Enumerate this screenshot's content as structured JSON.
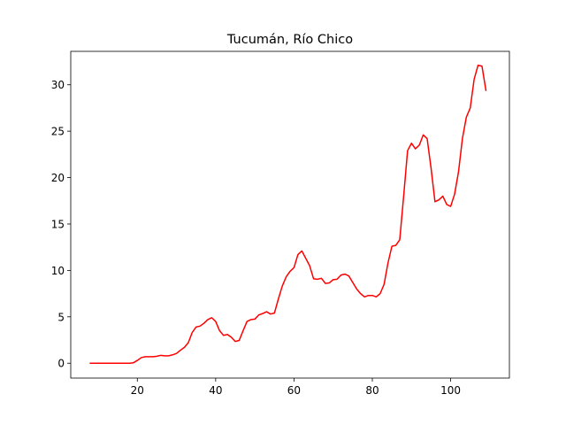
{
  "chart_data": {
    "type": "line",
    "title": "Tucumán, Río Chico",
    "xlabel": "",
    "ylabel": "",
    "xlim": [
      3,
      115
    ],
    "ylim": [
      -1.6,
      33.6
    ],
    "xticks": [
      20,
      40,
      60,
      80,
      100
    ],
    "yticks": [
      0,
      5,
      10,
      15,
      20,
      25,
      30
    ],
    "grid": false,
    "series": [
      {
        "color": "#ff0000",
        "x": [
          8,
          9,
          10,
          11,
          12,
          13,
          14,
          15,
          16,
          17,
          18,
          19,
          20,
          21,
          22,
          23,
          24,
          25,
          26,
          27,
          28,
          29,
          30,
          31,
          32,
          33,
          34,
          35,
          36,
          37,
          38,
          39,
          40,
          41,
          42,
          43,
          44,
          45,
          46,
          47,
          48,
          49,
          50,
          51,
          52,
          53,
          54,
          55,
          56,
          57,
          58,
          59,
          60,
          61,
          62,
          63,
          64,
          65,
          66,
          67,
          68,
          69,
          70,
          71,
          72,
          73,
          74,
          75,
          76,
          77,
          78,
          79,
          80,
          81,
          82,
          83,
          84,
          85,
          86,
          87,
          88,
          89,
          90,
          91,
          92,
          93,
          94,
          95,
          96,
          97,
          98,
          99,
          100,
          101,
          102,
          103,
          104,
          105,
          106,
          107,
          108,
          109
        ],
        "y": [
          0,
          0,
          0,
          0,
          0,
          0,
          0,
          0,
          0,
          0,
          0,
          0.05,
          0.3,
          0.6,
          0.7,
          0.7,
          0.7,
          0.75,
          0.85,
          0.8,
          0.8,
          0.9,
          1.05,
          1.4,
          1.7,
          2.2,
          3.3,
          3.9,
          4.0,
          4.3,
          4.7,
          4.9,
          4.5,
          3.5,
          3.0,
          3.1,
          2.8,
          2.35,
          2.45,
          3.5,
          4.5,
          4.7,
          4.75,
          5.2,
          5.35,
          5.55,
          5.3,
          5.4,
          6.9,
          8.3,
          9.3,
          9.9,
          10.3,
          11.7,
          12.1,
          11.3,
          10.5,
          9.1,
          9.05,
          9.15,
          8.6,
          8.65,
          9.0,
          9.05,
          9.5,
          9.6,
          9.4,
          8.7,
          8.0,
          7.5,
          7.15,
          7.3,
          7.3,
          7.15,
          7.5,
          8.5,
          10.8,
          12.6,
          12.7,
          13.3,
          18.0,
          22.9,
          23.7,
          23.1,
          23.5,
          24.6,
          24.2,
          21.0,
          17.4,
          17.6,
          18.0,
          17.1,
          16.9,
          18.2,
          20.6,
          24.2,
          26.5,
          27.5,
          30.6,
          32.1,
          32.0,
          29.4
        ]
      }
    ]
  }
}
